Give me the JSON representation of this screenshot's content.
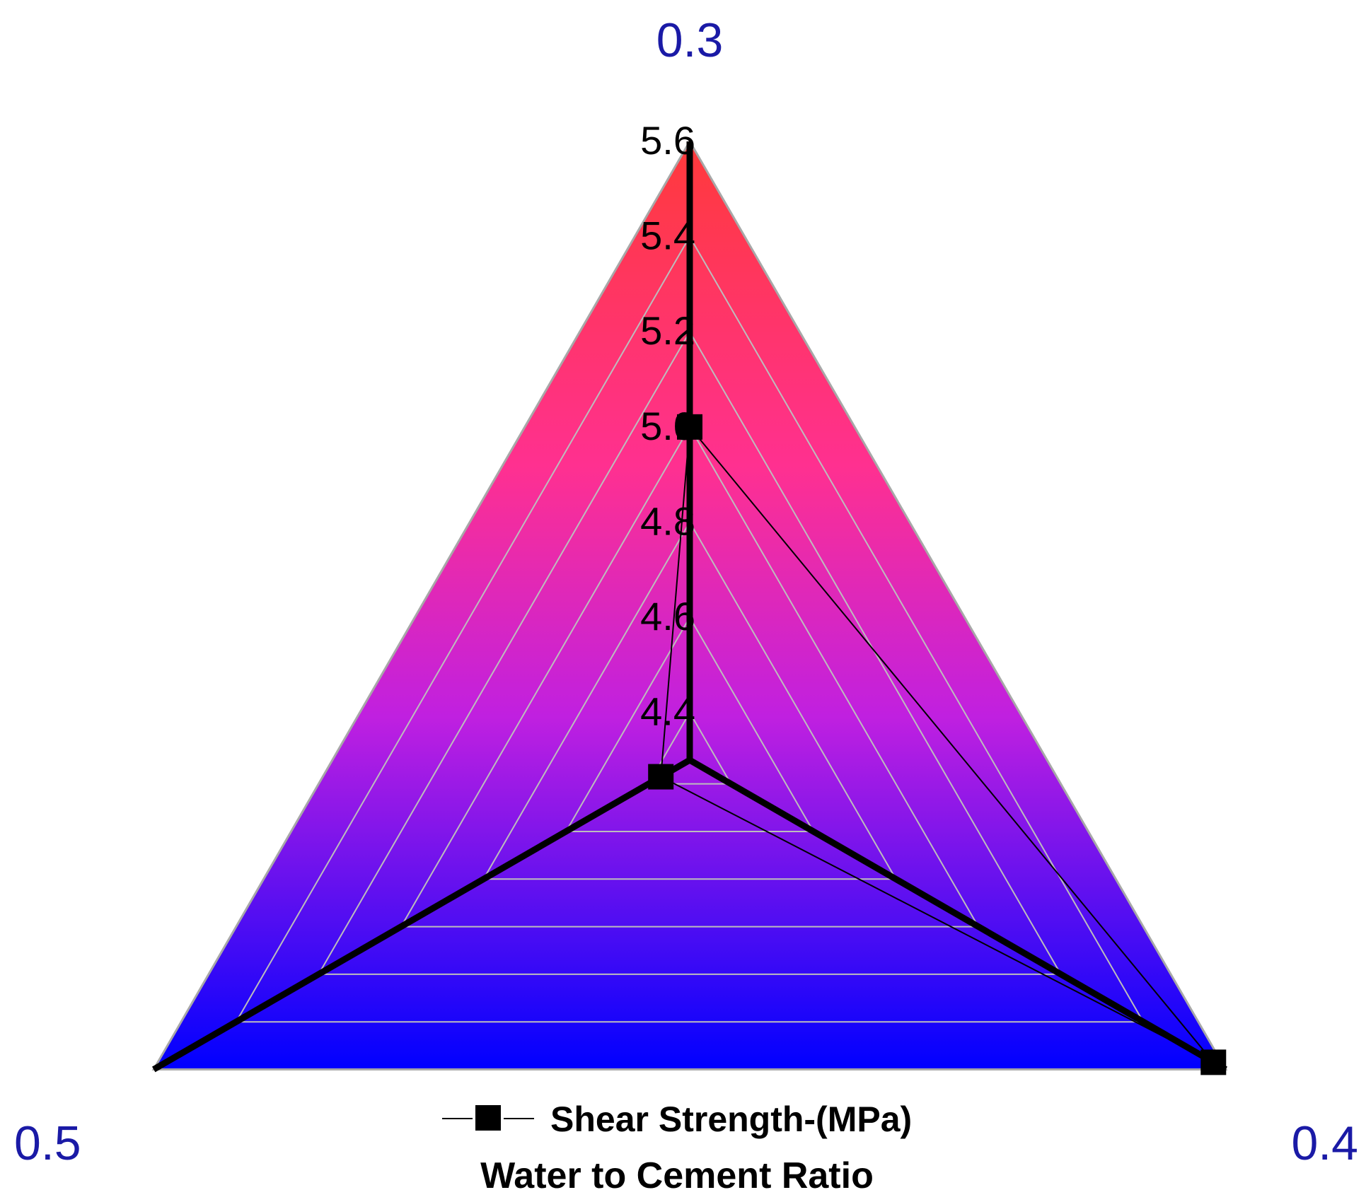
{
  "chart_data": {
    "type": "radar",
    "categories": [
      "0.3",
      "0.4",
      "0.5"
    ],
    "series": [
      {
        "name": "Shear Strength-(MPa)",
        "values": [
          5.0,
          5.57,
          4.37
        ]
      }
    ],
    "radial_range": [
      4.3,
      5.6
    ],
    "radial_ticks": [
      "4.4",
      "4.6",
      "4.8",
      "5.0",
      "5.2",
      "5.4",
      "5.6"
    ],
    "xlabel": "Water to Cement Ratio",
    "legend_position": "bottom-center",
    "grid": true,
    "colors": {
      "fill_top": "#ff3a3a",
      "fill_mid": "#c020e0",
      "fill_bottom": "#0000ff",
      "category_label": "#1a1aa6",
      "grid": "#bdbdbd",
      "series": "#000000"
    }
  }
}
